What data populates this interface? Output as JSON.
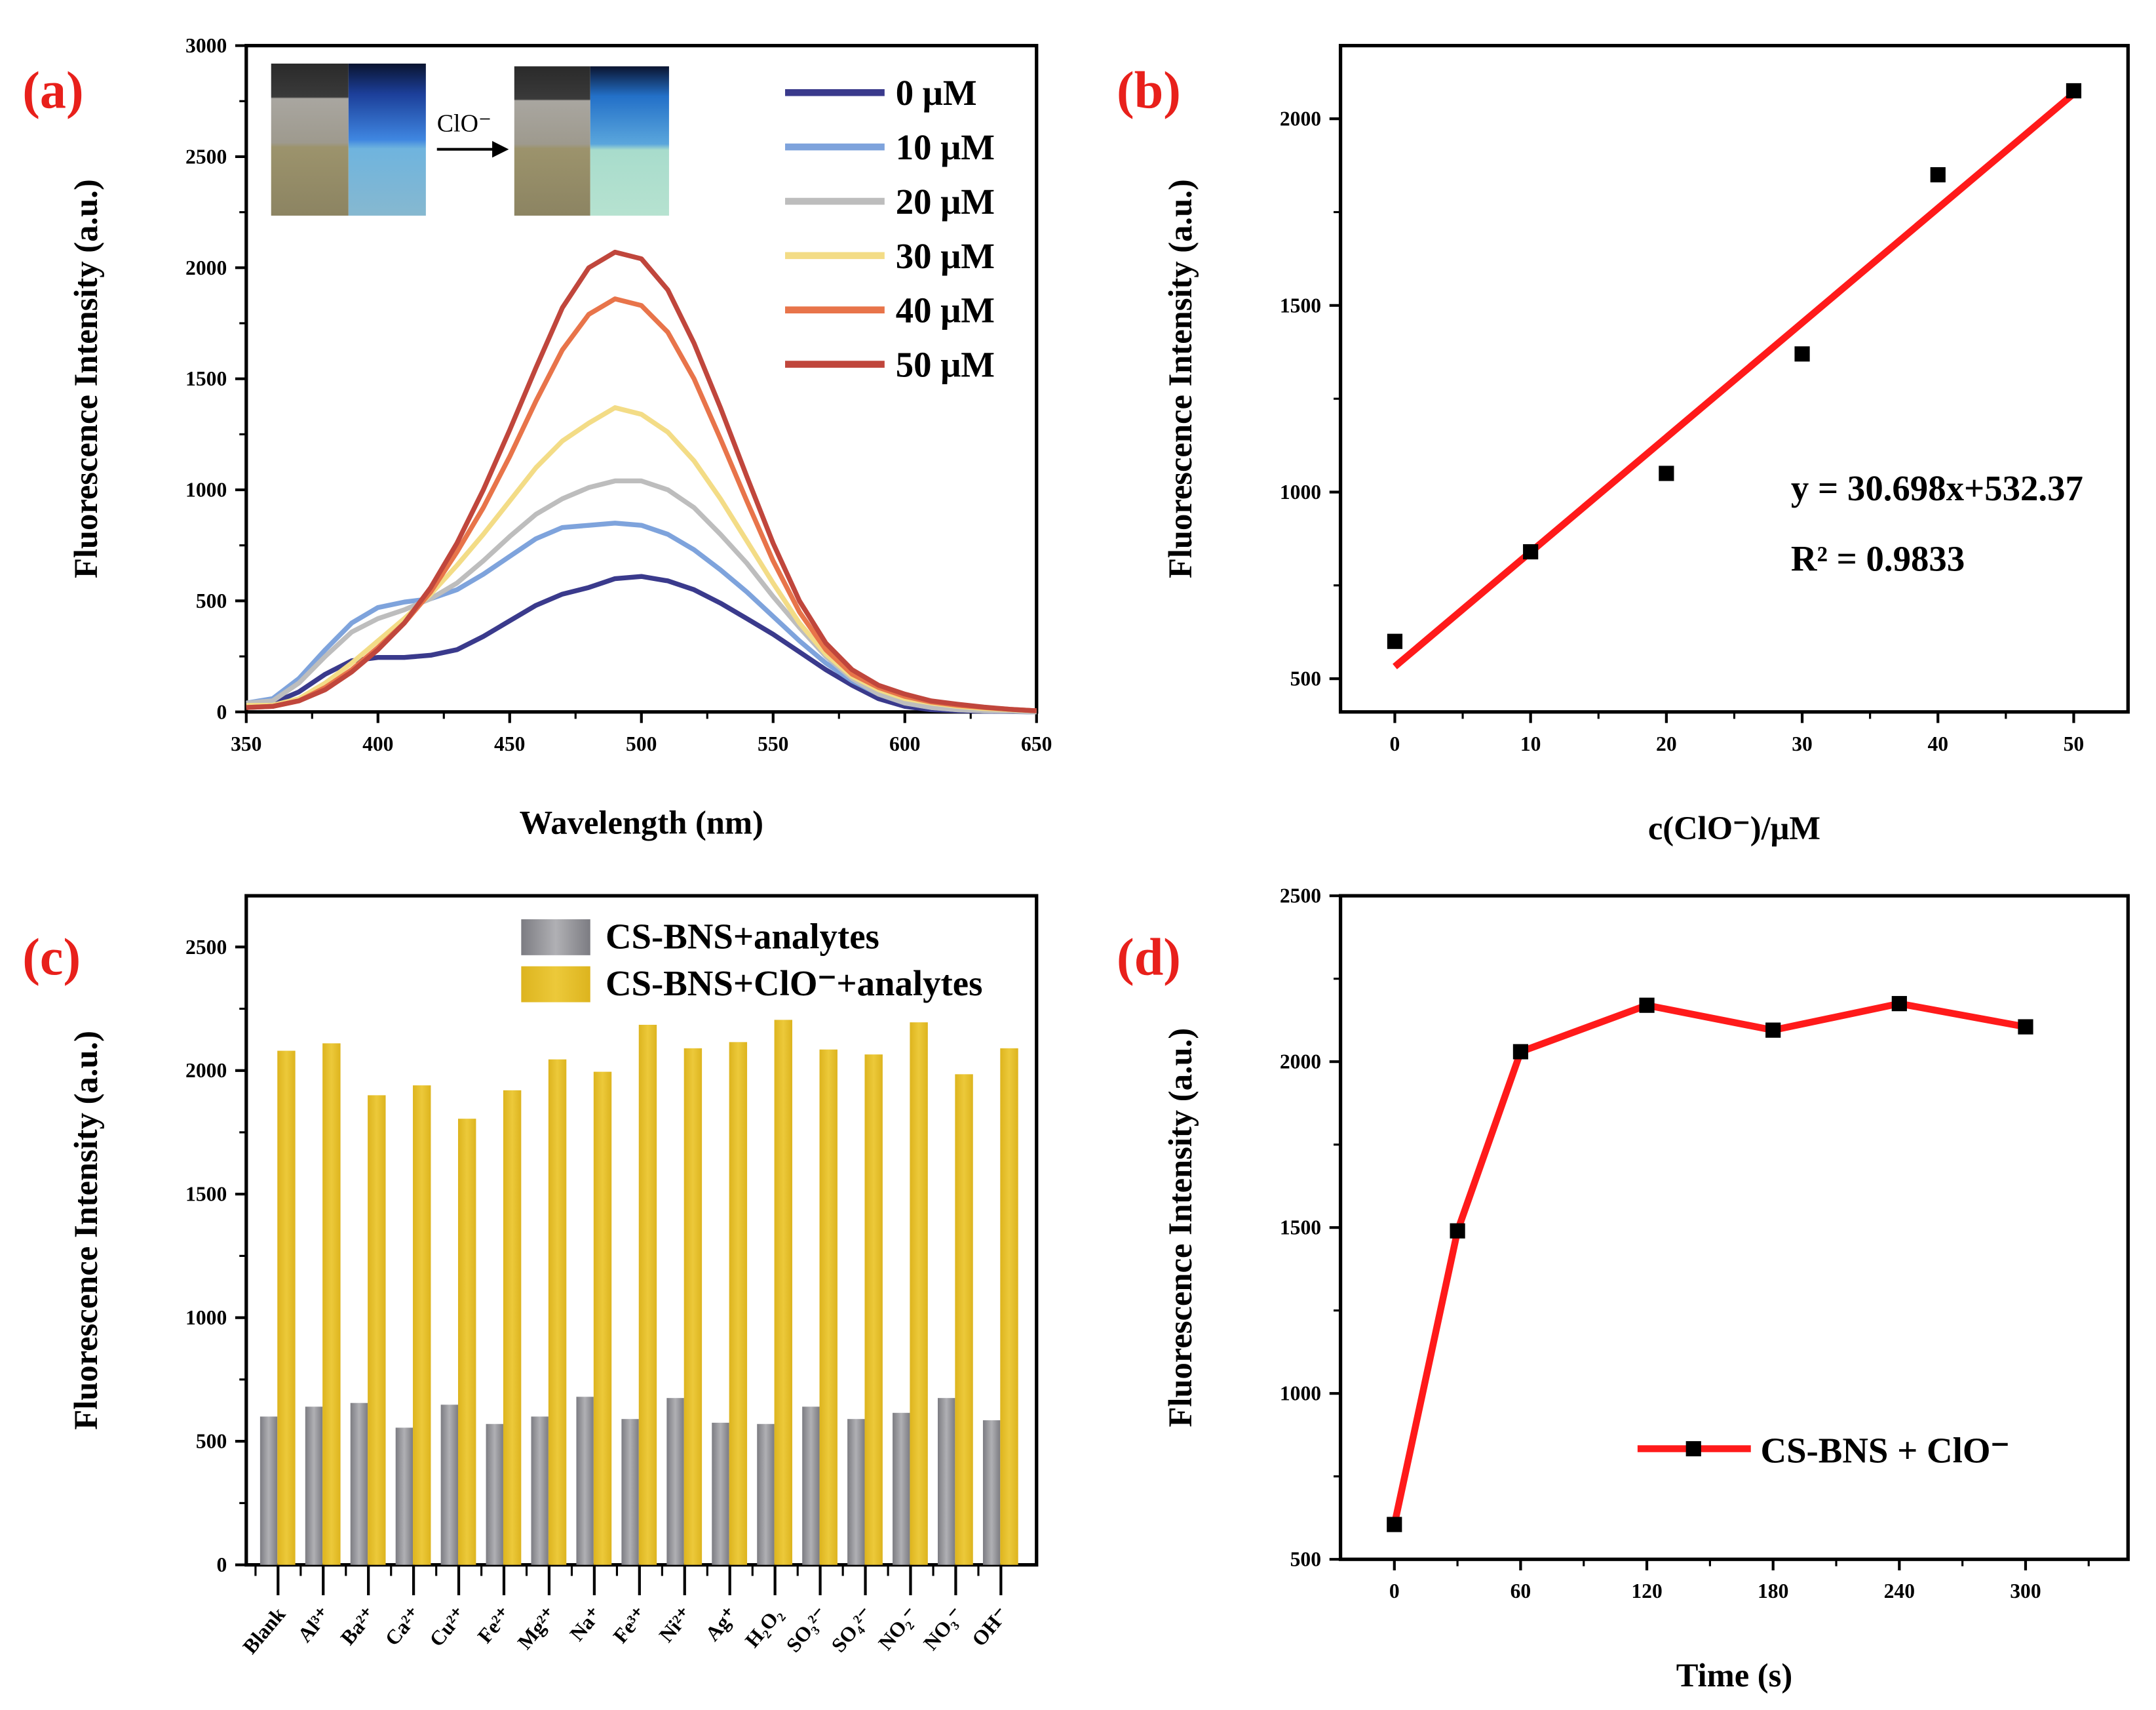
{
  "colors": {
    "panel_label": "#e8201b",
    "fit_line": "#ff1a1a",
    "gray_bar": "#9c9ca2",
    "yellow_bar": "#e6c02c"
  },
  "chart_data": [
    {
      "panel": "(a)",
      "type": "line",
      "xlabel": "Wavelength (nm)",
      "ylabel": "Fluorescence Intensity (a.u.)",
      "xlim": [
        350,
        650
      ],
      "ylim": [
        0,
        3000
      ],
      "xticks": [
        350,
        400,
        450,
        500,
        550,
        600,
        650
      ],
      "yticks": [
        0,
        500,
        1000,
        1500,
        2000,
        2500,
        3000
      ],
      "inset_label": "ClO⁻",
      "legend_position": "top-right",
      "x": [
        350,
        360,
        370,
        380,
        390,
        400,
        410,
        420,
        430,
        440,
        450,
        460,
        470,
        480,
        490,
        500,
        510,
        520,
        530,
        540,
        550,
        560,
        570,
        580,
        590,
        600,
        610,
        620,
        630,
        640,
        650
      ],
      "series": [
        {
          "name": "0 μM",
          "color": "#3a3a8c",
          "values": [
            30,
            40,
            90,
            170,
            230,
            245,
            245,
            255,
            280,
            340,
            410,
            480,
            530,
            560,
            600,
            610,
            590,
            550,
            490,
            420,
            350,
            270,
            190,
            120,
            60,
            25,
            10,
            5,
            3,
            2,
            0
          ]
        },
        {
          "name": "10 μM",
          "color": "#7ea3dc",
          "values": [
            40,
            60,
            150,
            280,
            400,
            470,
            495,
            510,
            550,
            620,
            700,
            780,
            830,
            840,
            850,
            840,
            800,
            730,
            640,
            540,
            430,
            320,
            220,
            140,
            80,
            40,
            20,
            10,
            5,
            3,
            0
          ]
        },
        {
          "name": "20 μM",
          "color": "#bdbdbd",
          "values": [
            40,
            50,
            130,
            250,
            360,
            420,
            460,
            510,
            580,
            680,
            790,
            890,
            960,
            1010,
            1040,
            1040,
            1000,
            920,
            800,
            670,
            520,
            380,
            250,
            150,
            80,
            40,
            20,
            10,
            5,
            3,
            0
          ]
        },
        {
          "name": "30 μM",
          "color": "#f3dc86",
          "values": [
            30,
            30,
            60,
            130,
            220,
            320,
            420,
            530,
            660,
            800,
            950,
            1100,
            1220,
            1300,
            1370,
            1340,
            1260,
            1130,
            960,
            770,
            580,
            400,
            260,
            160,
            100,
            60,
            40,
            25,
            15,
            10,
            5
          ]
        },
        {
          "name": "40 μM",
          "color": "#e8744a",
          "values": [
            20,
            25,
            50,
            110,
            190,
            290,
            400,
            540,
            720,
            920,
            1150,
            1400,
            1630,
            1790,
            1860,
            1830,
            1710,
            1500,
            1230,
            950,
            680,
            450,
            280,
            170,
            110,
            70,
            45,
            30,
            20,
            12,
            5
          ]
        },
        {
          "name": "50 μM",
          "color": "#c0463c",
          "values": [
            20,
            25,
            50,
            100,
            180,
            280,
            400,
            560,
            760,
            1000,
            1270,
            1550,
            1820,
            2000,
            2070,
            2040,
            1900,
            1660,
            1370,
            1060,
            760,
            500,
            310,
            190,
            120,
            80,
            50,
            35,
            22,
            12,
            5
          ]
        }
      ]
    },
    {
      "panel": "(b)",
      "type": "scatter",
      "xlabel": "c(ClO⁻)/μM",
      "ylabel": "Fluorescence Intensity (a.u.)",
      "xlim": [
        -4,
        54
      ],
      "ylim": [
        411,
        2196
      ],
      "xticks": [
        0,
        10,
        20,
        30,
        40,
        50
      ],
      "yticks": [
        500,
        1000,
        1500,
        2000
      ],
      "x": [
        0,
        10,
        20,
        30,
        40,
        50
      ],
      "values": [
        600,
        840,
        1050,
        1370,
        1850,
        2075
      ],
      "fit": {
        "slope": 30.698,
        "intercept": 532.37
      },
      "equation": "y = 30.698x+532.37",
      "r2_label": "R² = 0.9833"
    },
    {
      "panel": "(c)",
      "type": "bar",
      "ylabel": "Fluorescence Intensity (a.u.)",
      "ylim": [
        0,
        2707
      ],
      "yticks": [
        0,
        500,
        1000,
        1500,
        2000,
        2500
      ],
      "legend_position": "top-right",
      "categories": [
        "Blank",
        "Al³⁺",
        "Ba²⁺",
        "Ca²⁺",
        "Cu²⁺",
        "Fe²⁺",
        "Mg²⁺",
        "Na⁺",
        "Fe³⁺",
        "Ni²⁺",
        "Ag⁺",
        "H₂O₂",
        "SO₃²⁻",
        "SO₄²⁻",
        "NO₂⁻",
        "NO₃⁻",
        "OH⁻"
      ],
      "series": [
        {
          "name": "CS-BNS+analytes",
          "values": [
            600,
            640,
            655,
            555,
            648,
            570,
            600,
            680,
            590,
            675,
            575,
            570,
            640,
            590,
            615,
            675,
            585
          ]
        },
        {
          "name": "CS-BNS+ClO⁻+analytes",
          "values": [
            2080,
            2110,
            1900,
            1940,
            1805,
            1920,
            2045,
            1995,
            2185,
            2090,
            2115,
            2205,
            2085,
            2065,
            2195,
            1985,
            2090
          ]
        }
      ]
    },
    {
      "panel": "(d)",
      "type": "line",
      "xlabel": "Time (s)",
      "ylabel": "Fluorescence Intensity (a.u.)",
      "xlim": [
        -25.6,
        348.7
      ],
      "ylim": [
        500,
        2500
      ],
      "xticks": [
        0,
        60,
        120,
        180,
        240,
        300
      ],
      "yticks": [
        500,
        1000,
        1500,
        2000,
        2500
      ],
      "legend_position": "bottom-right",
      "series": [
        {
          "name": "CS-BNS + ClO⁻",
          "x": [
            0,
            30,
            60,
            120,
            180,
            240,
            300
          ],
          "values": [
            605,
            1490,
            2030,
            2170,
            2095,
            2175,
            2105
          ]
        }
      ]
    }
  ]
}
